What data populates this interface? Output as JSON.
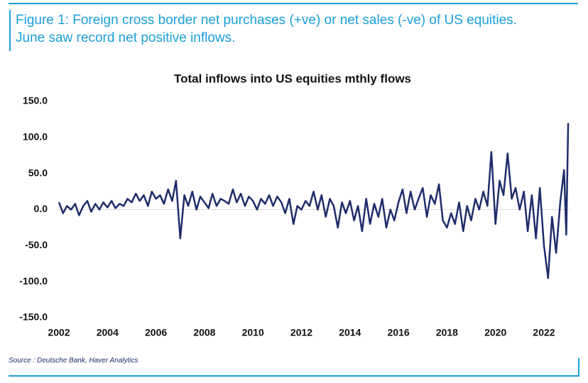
{
  "caption": "Figure 1: Foreign cross border net purchases (+ve) or net sales (-ve) of US equities. June saw record net positive inflows.",
  "source": "Source : Deutsche Bank, Haver Analytics",
  "chart_data": {
    "type": "line",
    "title": "Total inflows into US equities mthly flows",
    "color": "#1f2d6b",
    "x": [
      2002,
      2002.17,
      2002.33,
      2002.5,
      2002.67,
      2002.83,
      2003,
      2003.17,
      2003.33,
      2003.5,
      2003.67,
      2003.83,
      2004,
      2004.17,
      2004.33,
      2004.5,
      2004.67,
      2004.83,
      2005,
      2005.17,
      2005.33,
      2005.5,
      2005.67,
      2005.83,
      2006,
      2006.17,
      2006.33,
      2006.5,
      2006.67,
      2006.83,
      2007,
      2007.17,
      2007.33,
      2007.5,
      2007.67,
      2007.83,
      2008,
      2008.17,
      2008.33,
      2008.5,
      2008.67,
      2008.83,
      2009,
      2009.17,
      2009.33,
      2009.5,
      2009.67,
      2009.83,
      2010,
      2010.17,
      2010.33,
      2010.5,
      2010.67,
      2010.83,
      2011,
      2011.17,
      2011.33,
      2011.5,
      2011.67,
      2011.83,
      2012,
      2012.17,
      2012.33,
      2012.5,
      2012.67,
      2012.83,
      2013,
      2013.17,
      2013.33,
      2013.5,
      2013.67,
      2013.83,
      2014,
      2014.17,
      2014.33,
      2014.5,
      2014.67,
      2014.83,
      2015,
      2015.17,
      2015.33,
      2015.5,
      2015.67,
      2015.83,
      2016,
      2016.17,
      2016.33,
      2016.5,
      2016.67,
      2016.83,
      2017,
      2017.17,
      2017.33,
      2017.5,
      2017.67,
      2017.83,
      2018,
      2018.17,
      2018.33,
      2018.5,
      2018.67,
      2018.83,
      2019,
      2019.17,
      2019.33,
      2019.5,
      2019.67,
      2019.83,
      2020,
      2020.17,
      2020.33,
      2020.5,
      2020.67,
      2020.83,
      2021,
      2021.17,
      2021.33,
      2021.5,
      2021.67,
      2021.83,
      2022,
      2022.17,
      2022.33,
      2022.5,
      2022.67,
      2022.83,
      2022.92,
      2023
    ],
    "values": [
      10,
      -5,
      5,
      0,
      8,
      -8,
      5,
      12,
      -3,
      8,
      0,
      10,
      3,
      12,
      2,
      8,
      5,
      15,
      10,
      22,
      12,
      20,
      5,
      25,
      15,
      20,
      8,
      28,
      12,
      40,
      -40,
      20,
      5,
      25,
      0,
      18,
      10,
      2,
      22,
      5,
      15,
      12,
      8,
      28,
      10,
      22,
      5,
      18,
      12,
      0,
      15,
      8,
      20,
      5,
      18,
      10,
      -5,
      15,
      -20,
      5,
      0,
      12,
      5,
      25,
      0,
      20,
      -10,
      15,
      5,
      -25,
      10,
      -5,
      12,
      -15,
      5,
      -30,
      15,
      -20,
      8,
      -10,
      15,
      -25,
      0,
      -15,
      10,
      28,
      -5,
      25,
      0,
      15,
      30,
      -10,
      20,
      8,
      35,
      -15,
      -25,
      -5,
      -20,
      10,
      -30,
      5,
      -15,
      15,
      0,
      25,
      5,
      80,
      -20,
      40,
      20,
      78,
      15,
      30,
      0,
      25,
      -30,
      20,
      -40,
      30,
      -50,
      -95,
      -10,
      -60,
      10,
      55,
      -35,
      120
    ],
    "xlim": [
      2002,
      2023.1
    ],
    "xticks": [
      2002,
      2004,
      2006,
      2008,
      2010,
      2012,
      2014,
      2016,
      2018,
      2020,
      2022
    ],
    "ylim": [
      -150,
      150
    ],
    "yticks": [
      {
        "value": -150,
        "label": "-150.0"
      },
      {
        "value": -100,
        "label": "-100.0"
      },
      {
        "value": -50,
        "label": "-50.0"
      },
      {
        "value": 0,
        "label": "0.0"
      },
      {
        "value": 50,
        "label": "50.0"
      },
      {
        "value": 100,
        "label": "100.0"
      },
      {
        "value": 150,
        "label": "150.0"
      }
    ]
  }
}
